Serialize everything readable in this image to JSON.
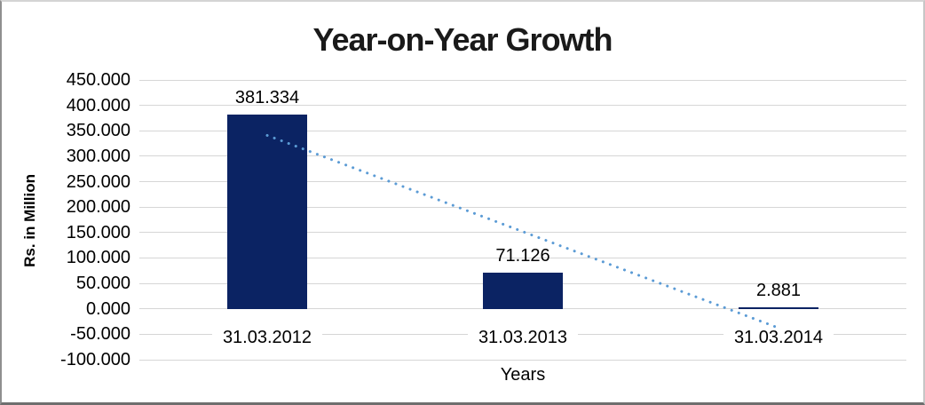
{
  "chart_data": {
    "type": "bar",
    "title": "Year-on-Year Growth",
    "xlabel": "Years",
    "ylabel": "Rs. in Million",
    "categories": [
      "31.03.2012",
      "31.03.2013",
      "31.03.2014"
    ],
    "values": [
      381.334,
      71.126,
      2.881
    ],
    "value_labels": [
      "381.334",
      "71.126",
      "2.881"
    ],
    "y_tick_labels": [
      "450.000",
      "400.000",
      "350.000",
      "300.000",
      "250.000",
      "200.000",
      "150.000",
      "100.000",
      "50.000",
      "0.000",
      "-50.000",
      "-100.000"
    ],
    "y_tick_values": [
      450,
      400,
      350,
      300,
      250,
      200,
      150,
      100,
      50,
      0,
      -50,
      -100
    ],
    "ylim": [
      -100,
      450
    ],
    "grid": true,
    "legend": false,
    "trendline": {
      "type": "linear",
      "style": "dotted"
    },
    "colors": {
      "bar": "#0b2363",
      "trendline": "#5b9bd5",
      "gridline": "#d6d6d6",
      "text": "#000000",
      "title": "#1a1a1a",
      "background": "#ffffff"
    }
  }
}
